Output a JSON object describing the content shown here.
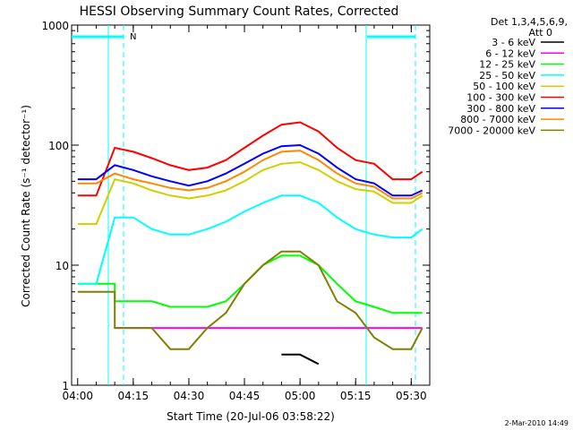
{
  "chart_data": {
    "type": "line",
    "title": "HESSI Observing Summary Count Rates, Corrected",
    "xlabel": "Start Time (20-Jul-06 03:58:22)",
    "ylabel": "Corrected Count Rate (s⁻¹ detector⁻¹)",
    "yscale": "log",
    "ylim": [
      1,
      1000
    ],
    "xlim": [
      "03:58:22",
      "05:35:00"
    ],
    "x_ticks": [
      "04:00",
      "04:15",
      "04:30",
      "04:45",
      "05:00",
      "05:15",
      "05:30"
    ],
    "y_ticks": [
      "1",
      "10",
      "100",
      "1000"
    ],
    "legend_header": [
      "Det 1,3,4,5,6,9,",
      "Att 0"
    ],
    "legend_position": "right",
    "grid": false,
    "annotation": "N",
    "x": [
      "04:00",
      "04:05",
      "04:10",
      "04:10",
      "04:15",
      "04:20",
      "04:25",
      "04:30",
      "04:35",
      "04:40",
      "04:45",
      "04:50",
      "04:55",
      "05:00",
      "05:05",
      "05:10",
      "05:15",
      "05:20",
      "05:25",
      "05:30",
      "05:33"
    ],
    "series": [
      {
        "name": "3 - 6 keV",
        "color": "#000000",
        "values": [
          null,
          null,
          null,
          null,
          null,
          null,
          null,
          null,
          null,
          null,
          null,
          null,
          1.8,
          1.8,
          1.5,
          null,
          null,
          null,
          null,
          null,
          null
        ]
      },
      {
        "name": "6 - 12 keV",
        "color": "#ff00ff",
        "values": [
          null,
          null,
          3.0,
          3.0,
          3.0,
          3.0,
          3.0,
          3.0,
          3.0,
          3.0,
          3.0,
          3.0,
          3.0,
          3.0,
          3.0,
          3.0,
          3.0,
          3.0,
          3.0,
          3.0,
          3.0
        ]
      },
      {
        "name": "12 - 25 keV",
        "color": "#00ff00",
        "values": [
          7,
          7,
          7,
          5,
          5,
          5,
          4.5,
          4.5,
          4.5,
          5,
          7,
          10,
          12,
          12,
          10,
          7,
          5,
          4.5,
          4,
          4,
          4
        ]
      },
      {
        "name": "25 - 50 keV",
        "color": "#00ffff",
        "values": [
          7,
          7,
          25,
          25,
          25,
          20,
          18,
          18,
          20,
          23,
          28,
          33,
          38,
          38,
          33,
          25,
          20,
          18,
          17,
          17,
          20
        ]
      },
      {
        "name": "50 - 100 keV",
        "color": "#d0d000",
        "values": [
          22,
          22,
          52,
          52,
          48,
          42,
          38,
          36,
          38,
          42,
          50,
          62,
          70,
          72,
          62,
          50,
          43,
          41,
          33,
          33,
          38
        ]
      },
      {
        "name": "100 - 300 keV",
        "color": "#ff0000",
        "values": [
          38,
          38,
          95,
          95,
          88,
          78,
          68,
          62,
          65,
          75,
          95,
          120,
          148,
          155,
          130,
          95,
          75,
          70,
          52,
          52,
          60
        ]
      },
      {
        "name": "300 - 800 keV",
        "color": "#0000ff",
        "values": [
          52,
          52,
          68,
          68,
          62,
          55,
          50,
          46,
          50,
          58,
          70,
          85,
          98,
          100,
          85,
          65,
          52,
          48,
          38,
          38,
          42
        ]
      },
      {
        "name": "800 - 7000 keV",
        "color": "#ff8800",
        "values": [
          48,
          48,
          58,
          58,
          52,
          48,
          44,
          42,
          44,
          50,
          60,
          75,
          88,
          90,
          75,
          58,
          48,
          45,
          36,
          36,
          40
        ]
      },
      {
        "name": "7000 - 20000 keV",
        "color": "#808000",
        "values": [
          6,
          6,
          6,
          3,
          3,
          3,
          2,
          2,
          3,
          4,
          7,
          10,
          13,
          13,
          10,
          5,
          4,
          2.5,
          2,
          2,
          3
        ]
      }
    ]
  },
  "footer": {
    "timestamp": "2-Mar-2010 14:49"
  }
}
